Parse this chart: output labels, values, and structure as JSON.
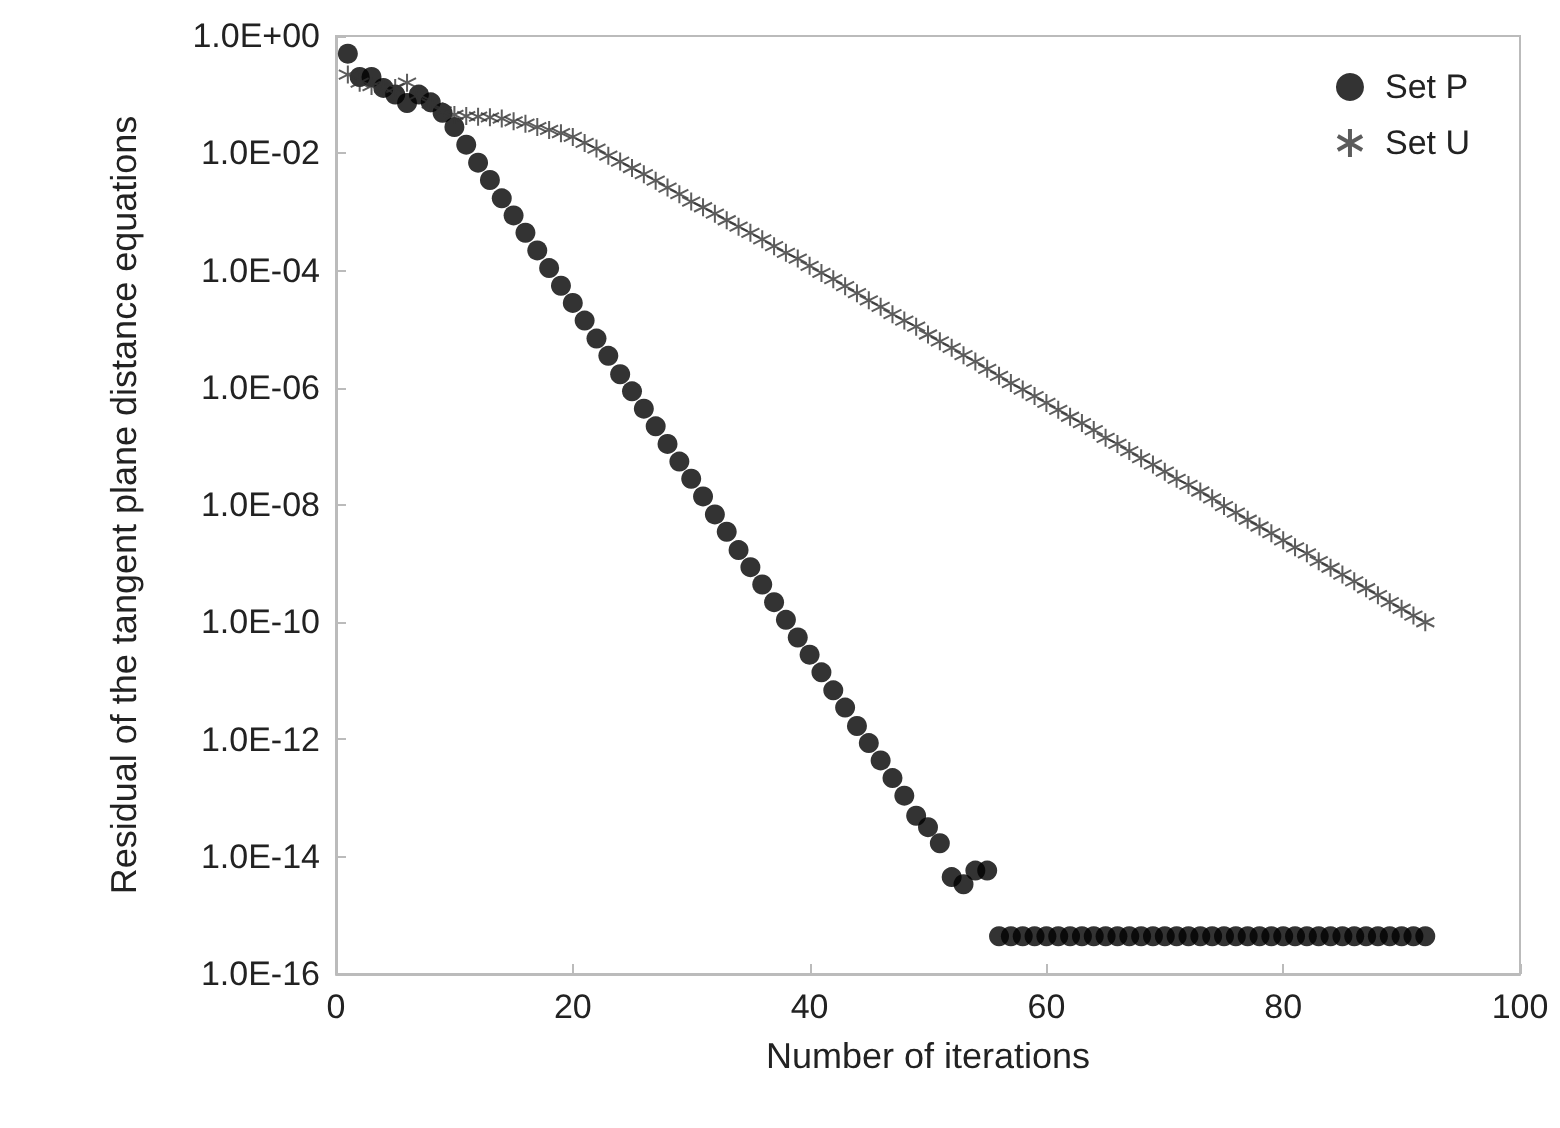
{
  "chart_data": {
    "type": "scatter",
    "xlabel": "Number of iterations",
    "ylabel": "Residual of the tangent plane distance equations",
    "log": "y",
    "legend": "top right",
    "grid": false,
    "x": [
      1,
      2,
      3,
      4,
      5,
      6,
      7,
      8,
      9,
      10,
      11,
      12,
      13,
      14,
      15,
      16,
      17,
      18,
      19,
      20,
      21,
      22,
      23,
      24,
      25,
      26,
      27,
      28,
      29,
      30,
      31,
      32,
      33,
      34,
      35,
      36,
      37,
      38,
      39,
      40,
      41,
      42,
      43,
      44,
      45,
      46,
      47,
      48,
      49,
      50,
      51,
      52,
      53,
      54,
      55,
      56,
      57,
      58,
      59,
      60,
      61,
      62,
      63,
      64,
      65,
      66,
      67,
      68,
      69,
      70,
      71,
      72,
      73,
      74,
      75,
      76,
      77,
      78,
      79,
      80,
      81,
      82,
      83,
      84,
      85,
      86,
      87,
      88,
      89,
      90,
      91,
      92
    ],
    "xlim": [
      0,
      100
    ],
    "xticks": [
      0,
      20,
      40,
      60,
      80,
      100
    ],
    "ylim": [
      1e-16,
      1
    ],
    "yticks": [
      {
        "value": 1,
        "label": "1.0E+00"
      },
      {
        "value": 0.01,
        "label": "1.0E-02"
      },
      {
        "value": 0.0001,
        "label": "1.0E-04"
      },
      {
        "value": 1e-06,
        "label": "1.0E-06"
      },
      {
        "value": 1e-08,
        "label": "1.0E-08"
      },
      {
        "value": 1e-10,
        "label": "1.0E-10"
      },
      {
        "value": 1e-12,
        "label": "1.0E-12"
      },
      {
        "value": 1e-14,
        "label": "1.0E-14"
      },
      {
        "value": 1e-16,
        "label": "1.0E-16"
      }
    ],
    "series": [
      {
        "name": "Set P",
        "color": "#000000",
        "marker": "circle",
        "values": [
          0.5,
          0.2,
          0.2,
          0.13,
          0.1,
          0.072,
          0.1,
          0.074,
          0.049,
          0.028,
          0.014,
          0.0069,
          0.0035,
          0.0017,
          0.00087,
          0.00044,
          0.00022,
          0.00011,
          5.5e-05,
          2.8e-05,
          1.4e-05,
          6.9e-06,
          3.5e-06,
          1.7e-06,
          8.7e-07,
          4.4e-07,
          2.2e-07,
          1.1e-07,
          5.5e-08,
          2.8e-08,
          1.4e-08,
          6.9e-09,
          3.5e-09,
          1.7e-09,
          8.7e-10,
          4.4e-10,
          2.2e-10,
          1.1e-10,
          5.5e-11,
          2.8e-11,
          1.4e-11,
          6.9e-12,
          3.5e-12,
          1.7e-12,
          8.7e-13,
          4.4e-13,
          2.2e-13,
          1.1e-13,
          5e-14,
          3.2e-14,
          1.7e-14,
          4.5e-15,
          3.4e-15,
          5.8e-15,
          5.8e-15,
          4.4e-16,
          4.4e-16,
          4.4e-16,
          4.4e-16,
          4.4e-16,
          4.4e-16,
          4.4e-16,
          4.4e-16,
          4.4e-16,
          4.4e-16,
          4.4e-16,
          4.4e-16,
          4.4e-16,
          4.4e-16,
          4.4e-16,
          4.4e-16,
          4.4e-16,
          4.4e-16,
          4.4e-16,
          4.4e-16,
          4.4e-16,
          4.4e-16,
          4.4e-16,
          4.4e-16,
          4.4e-16,
          4.4e-16,
          4.4e-16,
          4.4e-16,
          4.4e-16,
          4.4e-16,
          4.4e-16,
          4.4e-16,
          4.4e-16,
          4.4e-16,
          4.4e-16,
          4.4e-16,
          4.4e-16
        ]
      },
      {
        "name": "Set U",
        "color": "#333333",
        "marker": "cross",
        "values": [
          0.22,
          0.16,
          0.14,
          0.13,
          0.13,
          0.16,
          0.1,
          0.071,
          0.052,
          0.045,
          0.043,
          0.042,
          0.041,
          0.039,
          0.035,
          0.032,
          0.028,
          0.025,
          0.022,
          0.019,
          0.015,
          0.012,
          0.0091,
          0.0072,
          0.0056,
          0.0044,
          0.0034,
          0.0026,
          0.002,
          0.0015,
          0.0012,
          0.00093,
          0.00072,
          0.00056,
          0.00044,
          0.00034,
          0.00026,
          0.0002,
          0.00016,
          0.00012,
          9.1e-05,
          7.1e-05,
          5.4e-05,
          4.1e-05,
          3.1e-05,
          2.4e-05,
          1.8e-05,
          1.4e-05,
          1.1e-05,
          8.1e-06,
          6.2e-06,
          4.8e-06,
          3.6e-06,
          2.8e-06,
          2.1e-06,
          1.6e-06,
          1.2e-06,
          9.3e-07,
          7.2e-07,
          5.5e-07,
          4.2e-07,
          3.2e-07,
          2.5e-07,
          1.9e-07,
          1.4e-07,
          1.1e-07,
          8.3e-08,
          6.3e-08,
          4.9e-08,
          3.7e-08,
          2.8e-08,
          2.2e-08,
          1.7e-08,
          1.3e-08,
          9.6e-09,
          7.4e-09,
          5.6e-09,
          4.3e-09,
          3.3e-09,
          2.5e-09,
          1.9e-09,
          1.5e-09,
          1.1e-09,
          8.5e-10,
          6.5e-10,
          5e-10,
          3.8e-10,
          2.9e-10,
          2.2e-10,
          1.7e-10,
          1.3e-10,
          1e-10
        ]
      }
    ]
  }
}
